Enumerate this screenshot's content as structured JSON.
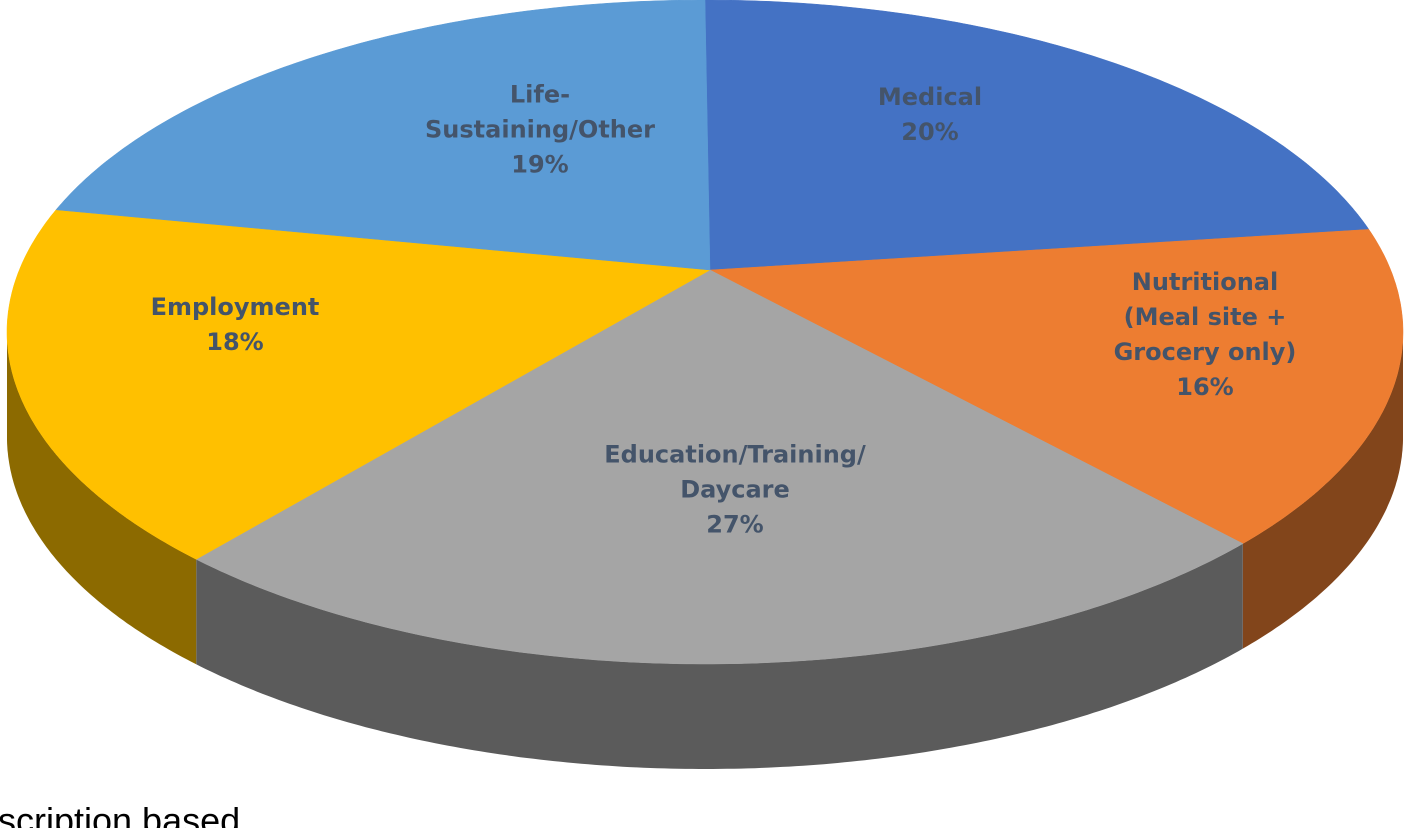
{
  "chart_data": {
    "type": "pie",
    "categories": [
      "Medical",
      "Nutritional (Meal site + Grocery only)",
      "Education/Training/ Daycare",
      "Employment",
      "Life-Sustaining/Other"
    ],
    "values": [
      20,
      16,
      27,
      18,
      19
    ],
    "value_labels": [
      "20%",
      "16%",
      "27%",
      "18%",
      "19%"
    ],
    "colors": [
      "#4472c4",
      "#ed7d31",
      "#a5a5a5",
      "#ffc000",
      "#5b9bd5"
    ],
    "footnote": "scription based"
  }
}
